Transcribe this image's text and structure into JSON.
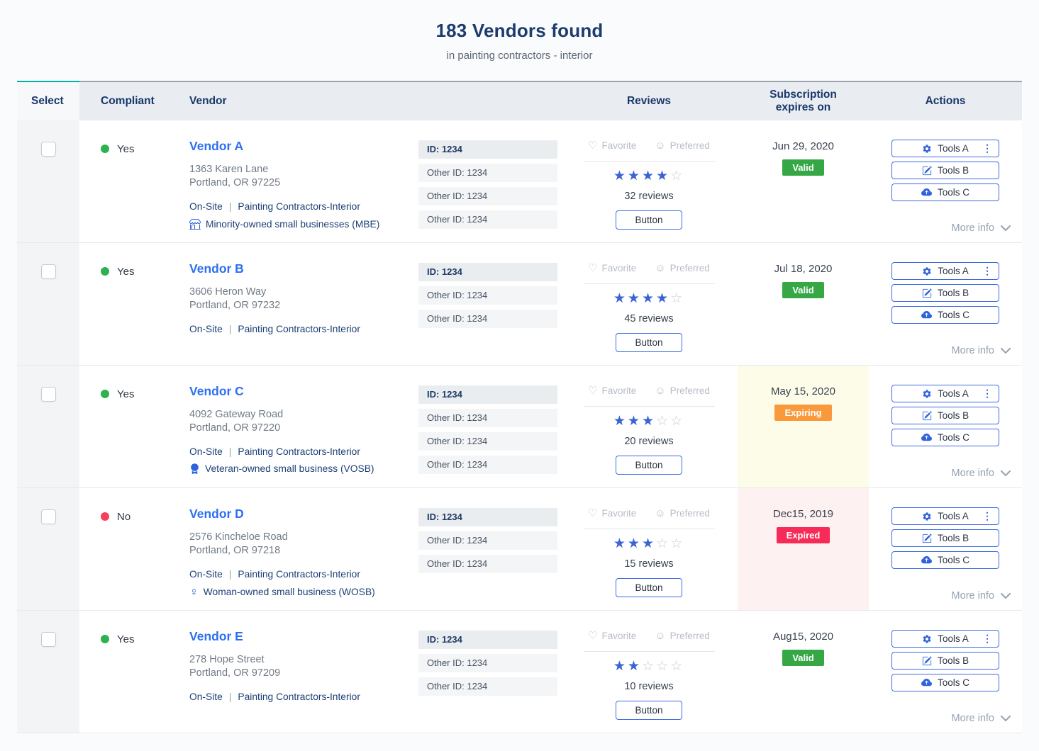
{
  "page": {
    "title": "183 Vendors found",
    "subtitle": "in painting contractors - interior"
  },
  "table": {
    "headers": {
      "select": "Select",
      "compliant": "Compliant",
      "vendor": "Vendor",
      "ids": "",
      "reviews": "Reviews",
      "subscription": "Subscription expires on",
      "actions": "Actions"
    },
    "labels": {
      "favorite": "Favorite",
      "preferred": "Preferred",
      "review_button": "Button",
      "more_info": "More info",
      "separator": "|"
    }
  },
  "actions": {
    "tools": [
      "Tools A",
      "Tools B",
      "Tools C"
    ],
    "tool_icons": [
      "gear-icon",
      "edit-icon",
      "cloud-upload-icon"
    ]
  },
  "icons": {
    "heart": "♡",
    "smiley": "☺",
    "kebab": "⋮",
    "star_filled": "★",
    "star_empty": "☆",
    "female": "♀"
  },
  "colors": {
    "accent_teal": "#00b2a3",
    "link_blue": "#2d6ff2",
    "icon_blue": "#2f63dd",
    "navy_heading": "#1c3c6e",
    "valid_green": "#35a845",
    "expiring_orange": "#f8993c",
    "expired_red": "#f72b57",
    "compliant_green_dot": "#2eb151",
    "noncompliant_red_dot": "#f53f5b",
    "expiring_cell_bg": "#fdfce8",
    "expired_cell_bg": "#fdf1f1"
  },
  "vendors": [
    {
      "compliant": {
        "label": "Yes",
        "ok": true
      },
      "name": "Vendor A",
      "address_line1": "1363 Karen Lane",
      "address_line2": "Portland, OR 97225",
      "service": "On-Site",
      "category": "Painting Contractors-Interior",
      "ownership": {
        "icon": "storefront-icon",
        "label": "Minority-owned small businesses (MBE)"
      },
      "ids": {
        "primary": "ID: 1234",
        "others": [
          "Other ID: 1234",
          "Other ID: 1234",
          "Other ID: 1234"
        ]
      },
      "rating": 4,
      "reviews": "32 reviews",
      "subscription": {
        "date": "Jun 29, 2020",
        "status_label": "Valid",
        "state": "valid"
      }
    },
    {
      "compliant": {
        "label": "Yes",
        "ok": true
      },
      "name": "Vendor B",
      "address_line1": "3606 Heron Way",
      "address_line2": "Portland, OR 97232",
      "service": "On-Site",
      "category": "Painting Contractors-Interior",
      "ownership": null,
      "ids": {
        "primary": "ID: 1234",
        "others": [
          "Other ID: 1234",
          "Other ID: 1234"
        ]
      },
      "rating": 4,
      "reviews": "45 reviews",
      "subscription": {
        "date": "Jul 18, 2020",
        "status_label": "Valid",
        "state": "valid"
      }
    },
    {
      "compliant": {
        "label": "Yes",
        "ok": true
      },
      "name": "Vendor C",
      "address_line1": "4092 Gateway Road",
      "address_line2": "Portland, OR 97220",
      "service": "On-Site",
      "category": "Painting Contractors-Interior",
      "ownership": {
        "icon": "medal-icon",
        "label": "Veteran-owned small business (VOSB)"
      },
      "ids": {
        "primary": "ID: 1234",
        "others": [
          "Other ID: 1234",
          "Other ID: 1234",
          "Other ID: 1234"
        ]
      },
      "rating": 3,
      "reviews": "20 reviews",
      "subscription": {
        "date": "May 15, 2020",
        "status_label": "Expiring",
        "state": "expiring"
      }
    },
    {
      "compliant": {
        "label": "No",
        "ok": false
      },
      "name": "Vendor D",
      "address_line1": "2576 Kincheloe Road",
      "address_line2": "Portland, OR 97218",
      "service": "On-Site",
      "category": "Painting Contractors-Interior",
      "ownership": {
        "icon": "female-icon",
        "label": "Woman-owned small business (WOSB)"
      },
      "ids": {
        "primary": "ID: 1234",
        "others": [
          "Other ID: 1234",
          "Other ID: 1234"
        ]
      },
      "rating": 3,
      "reviews": "15 reviews",
      "subscription": {
        "date": "Dec15, 2019",
        "status_label": "Expired",
        "state": "expired"
      }
    },
    {
      "compliant": {
        "label": "Yes",
        "ok": true
      },
      "name": "Vendor E",
      "address_line1": "278 Hope Street",
      "address_line2": "Portland, OR 97209",
      "service": "On-Site",
      "category": "Painting Contractors-Interior",
      "ownership": null,
      "ids": {
        "primary": "ID: 1234",
        "others": [
          "Other ID: 1234",
          "Other ID: 1234"
        ]
      },
      "rating": 2,
      "reviews": "10 reviews",
      "subscription": {
        "date": "Aug15, 2020",
        "status_label": "Valid",
        "state": "valid"
      }
    }
  ]
}
